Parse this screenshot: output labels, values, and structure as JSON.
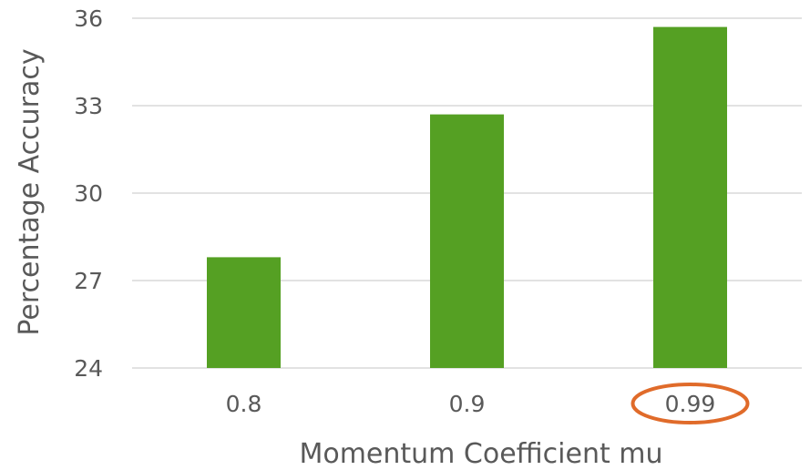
{
  "chart_data": {
    "type": "bar",
    "categories": [
      "0.8",
      "0.9",
      "0.99"
    ],
    "values": [
      27.8,
      32.7,
      35.7
    ],
    "xlabel": "Momentum Coefficient mu",
    "ylabel": "Percentage Accuracy",
    "ylim": [
      24,
      36
    ],
    "yticks": [
      "24",
      "27",
      "30",
      "33",
      "36"
    ],
    "grid": true,
    "highlighted_category": "0.99"
  },
  "colors": {
    "bar": "#55a023",
    "highlight_ring": "#e06b2a",
    "grid": "#d9d9d9",
    "text": "#595959"
  }
}
